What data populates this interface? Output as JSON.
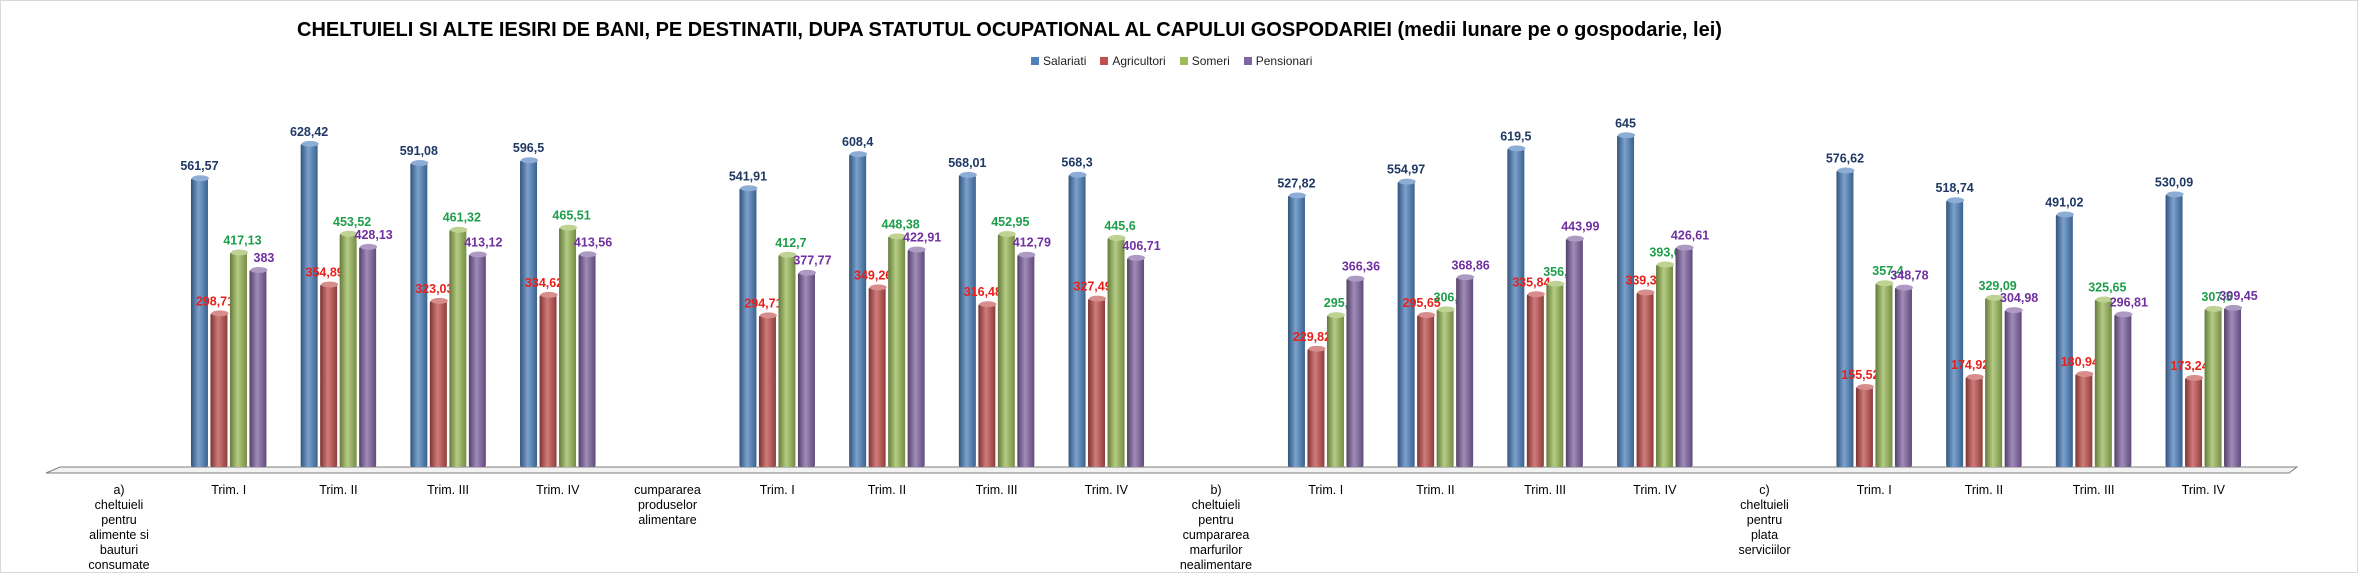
{
  "chart_data": {
    "type": "bar",
    "title": "CHELTUIELI SI ALTE IESIRI DE BANI, PE DESTINATII, DUPA STATUTUL OCUPATIONAL AL CAPULUI GOSPODARIEI (medii lunare pe o gospodarie, lei)",
    "xlabel": "",
    "ylabel": "",
    "ylim": [
      0,
      700
    ],
    "grid": false,
    "legend_position": "top-center",
    "categories": [
      "a) cheltuieli pentru alimente si bauturi consumate",
      "Trim. I",
      "Trim. II",
      "Trim. III",
      "Trim. IV",
      "cumpararea produselor alimentare",
      "Trim. I",
      "Trim. II",
      "Trim. III",
      "Trim. IV",
      "b) cheltuieli pentru cumpararea marfurilor nealimentare",
      "Trim. I",
      "Trim. II",
      "Trim. III",
      "Trim. IV",
      "c) cheltuieli pentru plata serviciilor",
      "Trim. I",
      "Trim. II",
      "Trim. III",
      "Trim. IV"
    ],
    "series": [
      {
        "name": "Salariati",
        "color": "#4f81bd",
        "label_color": "#1f3864",
        "values": [
          null,
          561.57,
          628.42,
          591.08,
          596.5,
          null,
          541.91,
          608.4,
          568.01,
          568.3,
          null,
          527.82,
          554.97,
          619.5,
          645,
          null,
          576.62,
          518.74,
          491.02,
          530.09
        ],
        "labels": [
          "",
          "561,57",
          "628,42",
          "591,08",
          "596,5",
          "",
          "541,91",
          "608,4",
          "568,01",
          "568,3",
          "",
          "527,82",
          "554,97",
          "619,5",
          "645",
          "",
          "576,62",
          "518,74",
          "491,02",
          "530,09"
        ]
      },
      {
        "name": "Agricultori",
        "color": "#c0504d",
        "label_color": "#e8201a",
        "values": [
          null,
          298.71,
          354.89,
          323.03,
          334.62,
          null,
          294.71,
          349.26,
          316.48,
          327.49,
          null,
          229.82,
          295.65,
          335.84,
          339.3,
          null,
          155.52,
          174.92,
          180.94,
          173.24
        ],
        "labels": [
          "",
          "298,71",
          "354,89",
          "323,03",
          "334,62",
          "",
          "294,71",
          "349,26",
          "316,48",
          "327,49",
          "",
          "229,82",
          "295,65",
          "335,84",
          "339,3",
          "",
          "155,52",
          "174,92",
          "180,94",
          "173,24"
        ]
      },
      {
        "name": "Someri",
        "color": "#9bbb59",
        "label_color": "#1e9e4a",
        "values": [
          null,
          417.13,
          453.52,
          461.32,
          465.51,
          null,
          412.7,
          448.38,
          452.95,
          445.6,
          null,
          295.3,
          306.4,
          356.2,
          393.69,
          null,
          357.4,
          329.09,
          325.65,
          307.5
        ],
        "labels": [
          "",
          "417,13",
          "453,52",
          "461,32",
          "465,51",
          "",
          "412,7",
          "448,38",
          "452,95",
          "445,6",
          "",
          "295,3",
          "306,4",
          "356,2",
          "393,69",
          "",
          "357,4",
          "329,09",
          "325,65",
          "307,5"
        ]
      },
      {
        "name": "Pensionari",
        "color": "#8064a2",
        "label_color": "#7030a0",
        "values": [
          null,
          383,
          428.13,
          413.12,
          413.56,
          null,
          377.77,
          422.91,
          412.79,
          406.71,
          null,
          366.36,
          368.86,
          443.99,
          426.61,
          null,
          348.78,
          304.98,
          296.81,
          309.45
        ],
        "labels": [
          "",
          "383",
          "428,13",
          "413,12",
          "413,56",
          "",
          "377,77",
          "422,91",
          "412,79",
          "406,71",
          "",
          "366,36",
          "368,86",
          "443,99",
          "426,61",
          "",
          "348,78",
          "304,98",
          "296,81",
          "309,45"
        ]
      }
    ]
  }
}
